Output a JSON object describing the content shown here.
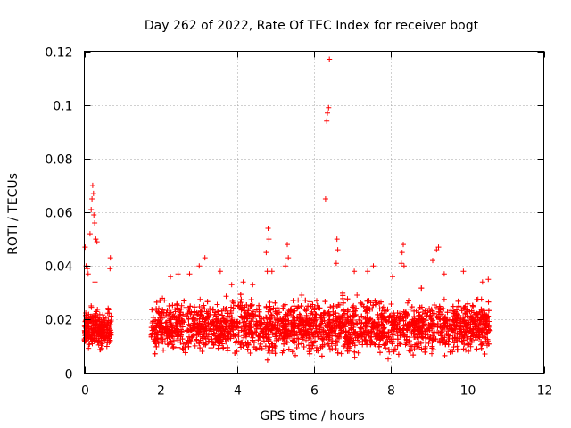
{
  "chart_data": {
    "type": "scatter",
    "title": "Day 262 of 2022, Rate Of TEC Index for receiver bogt",
    "xlabel": "GPS time / hours",
    "ylabel": "ROTI / TECUs",
    "xlim": [
      0,
      12
    ],
    "ylim": [
      0,
      0.12
    ],
    "xticks": [
      0,
      2,
      4,
      6,
      8,
      10,
      12
    ],
    "yticks": [
      0,
      0.02,
      0.04,
      0.06,
      0.08,
      0.1,
      0.12
    ],
    "xtick_labels": [
      "0",
      "2",
      "4",
      "6",
      "8",
      "10",
      "12"
    ],
    "ytick_labels": [
      "0",
      "0.02",
      "0.04",
      "0.06",
      "0.08",
      "0.1",
      "0.12"
    ],
    "grid": true,
    "marker": "+",
    "color": "#ff0000",
    "clusters": [
      {
        "x_start": 0.0,
        "x_end": 0.7,
        "y_min": 0.007,
        "y_max": 0.025
      },
      {
        "x_start": 1.75,
        "x_end": 10.6,
        "y_min": 0.004,
        "y_max": 0.03
      }
    ],
    "outliers": [
      [
        0.02,
        0.047
      ],
      [
        0.05,
        0.04
      ],
      [
        0.08,
        0.039
      ],
      [
        0.1,
        0.037
      ],
      [
        0.15,
        0.052
      ],
      [
        0.18,
        0.061
      ],
      [
        0.2,
        0.065
      ],
      [
        0.22,
        0.07
      ],
      [
        0.24,
        0.067
      ],
      [
        0.25,
        0.059
      ],
      [
        0.27,
        0.056
      ],
      [
        0.3,
        0.05
      ],
      [
        0.33,
        0.049
      ],
      [
        0.28,
        0.034
      ],
      [
        0.68,
        0.043
      ],
      [
        0.67,
        0.039
      ],
      [
        2.25,
        0.036
      ],
      [
        2.45,
        0.037
      ],
      [
        2.75,
        0.037
      ],
      [
        3.0,
        0.04
      ],
      [
        3.15,
        0.043
      ],
      [
        3.55,
        0.038
      ],
      [
        3.85,
        0.033
      ],
      [
        4.15,
        0.034
      ],
      [
        4.4,
        0.033
      ],
      [
        4.75,
        0.045
      ],
      [
        4.8,
        0.054
      ],
      [
        4.82,
        0.05
      ],
      [
        4.78,
        0.038
      ],
      [
        4.9,
        0.038
      ],
      [
        5.25,
        0.04
      ],
      [
        5.3,
        0.048
      ],
      [
        5.33,
        0.043
      ],
      [
        6.3,
        0.065
      ],
      [
        6.33,
        0.094
      ],
      [
        6.35,
        0.097
      ],
      [
        6.38,
        0.099
      ],
      [
        6.4,
        0.117
      ],
      [
        6.6,
        0.05
      ],
      [
        6.62,
        0.046
      ],
      [
        6.58,
        0.041
      ],
      [
        7.05,
        0.038
      ],
      [
        7.4,
        0.038
      ],
      [
        7.55,
        0.04
      ],
      [
        8.05,
        0.036
      ],
      [
        8.3,
        0.045
      ],
      [
        8.33,
        0.048
      ],
      [
        8.28,
        0.041
      ],
      [
        8.35,
        0.04
      ],
      [
        9.1,
        0.042
      ],
      [
        9.2,
        0.046
      ],
      [
        9.25,
        0.047
      ],
      [
        9.4,
        0.037
      ],
      [
        9.9,
        0.038
      ],
      [
        10.4,
        0.034
      ],
      [
        10.55,
        0.035
      ]
    ]
  }
}
